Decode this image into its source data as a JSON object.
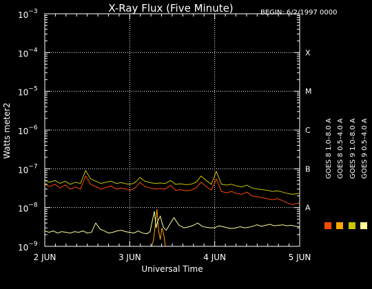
{
  "chart_data": {
    "type": "line",
    "title": "X-Ray Flux (Five Minute)",
    "begin_label": "BEGIN: 6/2/1997 0000",
    "xlabel": "Universal Time",
    "ylabel": "Watts meter2",
    "y_scale": "log",
    "ylim": [
      1e-09,
      0.001
    ],
    "y_ticks": [
      {
        "base": "10",
        "exp": "−9",
        "value": 1e-09
      },
      {
        "base": "10",
        "exp": "−8",
        "value": 1e-08
      },
      {
        "base": "10",
        "exp": "−7",
        "value": 1e-07
      },
      {
        "base": "10",
        "exp": "−6",
        "value": 1e-06
      },
      {
        "base": "10",
        "exp": "−5",
        "value": 1e-05
      },
      {
        "base": "10",
        "exp": "−4",
        "value": 0.0001
      },
      {
        "base": "10",
        "exp": "−3",
        "value": 0.001
      }
    ],
    "x_range_days": [
      0,
      3
    ],
    "x_ticks": [
      {
        "label": "2 JUN",
        "day": 0
      },
      {
        "label": "3 JUN",
        "day": 1
      },
      {
        "label": "4 JUN",
        "day": 2
      },
      {
        "label": "5 JUN",
        "day": 3
      }
    ],
    "class_labels": [
      {
        "label": "A",
        "value": 1e-08
      },
      {
        "label": "B",
        "value": 1e-07
      },
      {
        "label": "C",
        "value": 1e-06
      },
      {
        "label": "M",
        "value": 1e-05
      },
      {
        "label": "X",
        "value": 0.0001
      }
    ],
    "grid": {
      "horizontal_dotted_at": [
        1e-08,
        1e-07,
        1e-06,
        1e-05,
        0.0001
      ],
      "vertical_dotted_at_days": [
        1,
        2
      ]
    },
    "series": [
      {
        "name": "GOES 8 1.0–8.0 A",
        "color": "#ff4a00",
        "x": [
          0,
          0.06,
          0.12,
          0.18,
          0.24,
          0.3,
          0.36,
          0.42,
          0.48,
          0.54,
          0.6,
          0.66,
          0.72,
          0.78,
          0.84,
          0.9,
          0.96,
          1.0,
          1.04,
          1.08,
          1.12,
          1.18,
          1.24,
          1.3,
          1.36,
          1.42,
          1.48,
          1.54,
          1.6,
          1.66,
          1.72,
          1.78,
          1.84,
          1.9,
          1.96,
          2.02,
          2.08,
          2.14,
          2.2,
          2.26,
          2.32,
          2.38,
          2.44,
          2.5,
          2.56,
          2.62,
          2.68,
          2.74,
          2.8,
          2.86,
          2.92,
          2.98,
          3.0
        ],
        "y": [
          4e-08,
          3.5e-08,
          4e-08,
          3.2e-08,
          3.8e-08,
          3e-08,
          3.4e-08,
          3e-08,
          6.5e-08,
          4e-08,
          3.5e-08,
          3e-08,
          3.3e-08,
          3.6e-08,
          3e-08,
          3.2e-08,
          3e-08,
          2.8e-08,
          3e-08,
          3.5e-08,
          4.5e-08,
          3.5e-08,
          3.2e-08,
          3e-08,
          3.1e-08,
          3e-08,
          3.8e-08,
          2.8e-08,
          2.9e-08,
          2.7e-08,
          2.8e-08,
          3.2e-08,
          4.5e-08,
          3.5e-08,
          2.8e-08,
          5.5e-08,
          2.6e-08,
          2.4e-08,
          2.6e-08,
          2.3e-08,
          2.2e-08,
          2.5e-08,
          2e-08,
          1.9e-08,
          1.8e-08,
          1.7e-08,
          1.6e-08,
          1.7e-08,
          1.5e-08,
          1.3e-08,
          1.2e-08,
          1.3e-08,
          1.3e-08
        ]
      },
      {
        "name": "GOES 8 0.5–4.0 A",
        "color": "#ffa500",
        "x": [
          1.26,
          1.28,
          1.3,
          1.32,
          1.34,
          1.36,
          1.38,
          1.4,
          1.42,
          1.44,
          1.46,
          1.5,
          1.55,
          1.6,
          1.65,
          1.7,
          1.75,
          1.8,
          1.85
        ],
        "y": [
          1e-09,
          1.5e-09,
          3.5e-09,
          9e-09,
          2.5e-09,
          1.5e-09,
          3e-09,
          2e-09,
          1e-09,
          1e-09,
          1e-09,
          1e-09,
          1e-09,
          1e-09,
          1e-09,
          1e-09,
          1e-09,
          1e-09,
          1e-09
        ]
      },
      {
        "name": "GOES 9 1.0–8.0 A",
        "color": "#c8c400",
        "x": [
          0,
          0.06,
          0.12,
          0.18,
          0.24,
          0.3,
          0.36,
          0.42,
          0.48,
          0.54,
          0.6,
          0.66,
          0.72,
          0.78,
          0.84,
          0.9,
          0.96,
          1.0,
          1.04,
          1.08,
          1.12,
          1.18,
          1.24,
          1.3,
          1.36,
          1.42,
          1.48,
          1.54,
          1.6,
          1.66,
          1.72,
          1.78,
          1.84,
          1.9,
          1.96,
          2.02,
          2.08,
          2.14,
          2.2,
          2.26,
          2.32,
          2.38,
          2.44,
          2.5,
          2.56,
          2.62,
          2.68,
          2.74,
          2.8,
          2.86,
          2.92,
          2.98,
          3.0
        ],
        "y": [
          5e-08,
          4.5e-08,
          5e-08,
          4.2e-08,
          4.8e-08,
          4e-08,
          4.5e-08,
          4.2e-08,
          9e-08,
          5.5e-08,
          4.8e-08,
          4.2e-08,
          4.5e-08,
          4.8e-08,
          4.2e-08,
          4.4e-08,
          4.1e-08,
          4e-08,
          4.2e-08,
          4.8e-08,
          6e-08,
          4.8e-08,
          4.4e-08,
          4.2e-08,
          4.3e-08,
          4.2e-08,
          5e-08,
          4e-08,
          4.1e-08,
          3.9e-08,
          4e-08,
          4.5e-08,
          6.5e-08,
          5e-08,
          4e-08,
          8.5e-08,
          4e-08,
          3.8e-08,
          4e-08,
          3.6e-08,
          3.4e-08,
          3.8e-08,
          3.2e-08,
          3e-08,
          2.9e-08,
          2.8e-08,
          2.6e-08,
          2.7e-08,
          2.5e-08,
          2.3e-08,
          2.2e-08,
          2.3e-08,
          2.3e-08
        ]
      },
      {
        "name": "GOES 9 0.5–4.0 A",
        "color": "#ffff99",
        "x": [
          0,
          0.05,
          0.1,
          0.15,
          0.2,
          0.25,
          0.3,
          0.35,
          0.4,
          0.45,
          0.5,
          0.55,
          0.6,
          0.65,
          0.7,
          0.75,
          0.8,
          0.85,
          0.9,
          0.95,
          1.0,
          1.05,
          1.1,
          1.15,
          1.2,
          1.24,
          1.27,
          1.29,
          1.31,
          1.33,
          1.36,
          1.38,
          1.4,
          1.43,
          1.48,
          1.52,
          1.58,
          1.64,
          1.7,
          1.75,
          1.8,
          1.85,
          1.9,
          1.95,
          2.0,
          2.05,
          2.1,
          2.15,
          2.2,
          2.25,
          2.3,
          2.35,
          2.4,
          2.45,
          2.5,
          2.55,
          2.6,
          2.65,
          2.7,
          2.75,
          2.8,
          2.85,
          2.9,
          2.95,
          3.0
        ],
        "y": [
          2.5e-09,
          2.3e-09,
          2.5e-09,
          2.2e-09,
          2.4e-09,
          2.3e-09,
          2.2e-09,
          2.4e-09,
          2.3e-09,
          2.5e-09,
          2.2e-09,
          2.3e-09,
          4e-09,
          2.8e-09,
          2.5e-09,
          2.2e-09,
          2.3e-09,
          2.5e-09,
          2.6e-09,
          2.4e-09,
          2.3e-09,
          2.2e-09,
          2.5e-09,
          2.2e-09,
          2.1e-09,
          2.4e-09,
          5e-09,
          8e-09,
          3e-09,
          4.5e-09,
          6e-09,
          4e-09,
          3e-09,
          2.6e-09,
          4e-09,
          5.5e-09,
          3.5e-09,
          3e-09,
          3.2e-09,
          3.5e-09,
          4e-09,
          3.3e-09,
          3.1e-09,
          3e-09,
          3e-09,
          3.4e-09,
          3.2e-09,
          3e-09,
          2.9e-09,
          3e-09,
          3.2e-09,
          3e-09,
          3.1e-09,
          3.3e-09,
          3.6e-09,
          3.3e-09,
          3.5e-09,
          3.7e-09,
          3.4e-09,
          3.5e-09,
          3.6e-09,
          3.4e-09,
          3.5e-09,
          3.3e-09,
          3.2e-09
        ]
      }
    ],
    "legend": [
      {
        "text": "GOES 8 1.0–8.0 A",
        "color": "#ff4a00"
      },
      {
        "text": "GOES 8 0.5–4.0 A",
        "color": "#ffa500"
      },
      {
        "text": "GOES 9 1.0–8.0 A",
        "color": "#c8c400"
      },
      {
        "text": "GOES 9 0.5–4.0 A",
        "color": "#ffff99"
      }
    ]
  }
}
